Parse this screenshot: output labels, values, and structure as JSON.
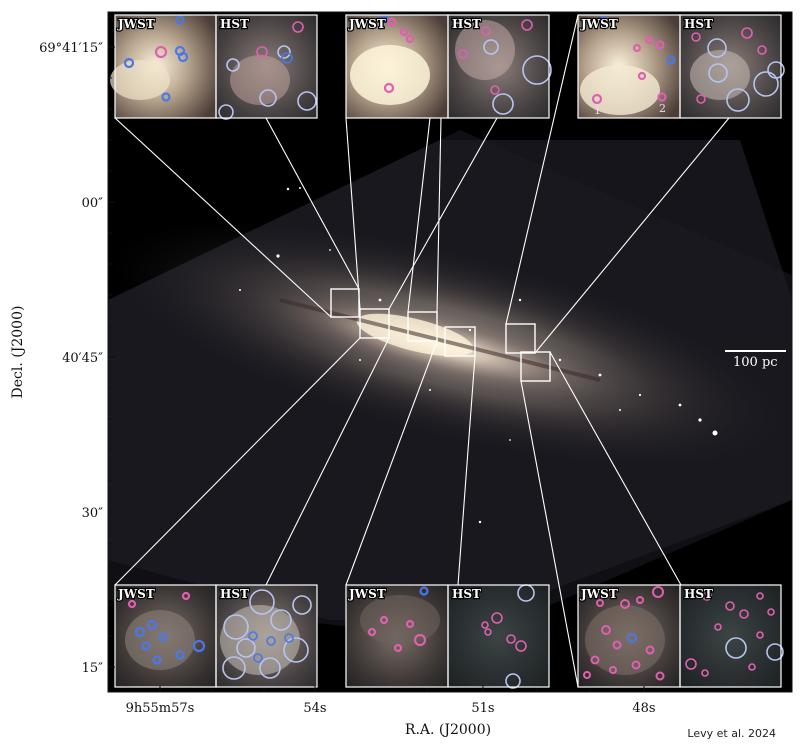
{
  "figure": {
    "y_ticks": [
      {
        "label": "69°41′15″"
      },
      {
        "label": "00″"
      },
      {
        "label": "40′45″"
      },
      {
        "label": "30″"
      },
      {
        "label": "15″"
      }
    ],
    "x_ticks": [
      {
        "label": "9h55m57s"
      },
      {
        "label": "54s"
      },
      {
        "label": "51s"
      },
      {
        "label": "48s"
      }
    ],
    "x_axis_title": "R.A. (J2000)",
    "y_axis_title": "Decl. (J2000)",
    "scale_bar_label": "100 pc",
    "credit": "Levy et al. 2024",
    "panel_labels": {
      "jwst": "JWST",
      "hst": "HST"
    },
    "source_numbers": [
      "1",
      "2"
    ],
    "colors": {
      "background": "#000000",
      "frame": "#ffffff",
      "pink_markers": "#e060b0",
      "blue_markers": "#4a78e8",
      "lavender_markers": "#b8c4f0"
    }
  }
}
